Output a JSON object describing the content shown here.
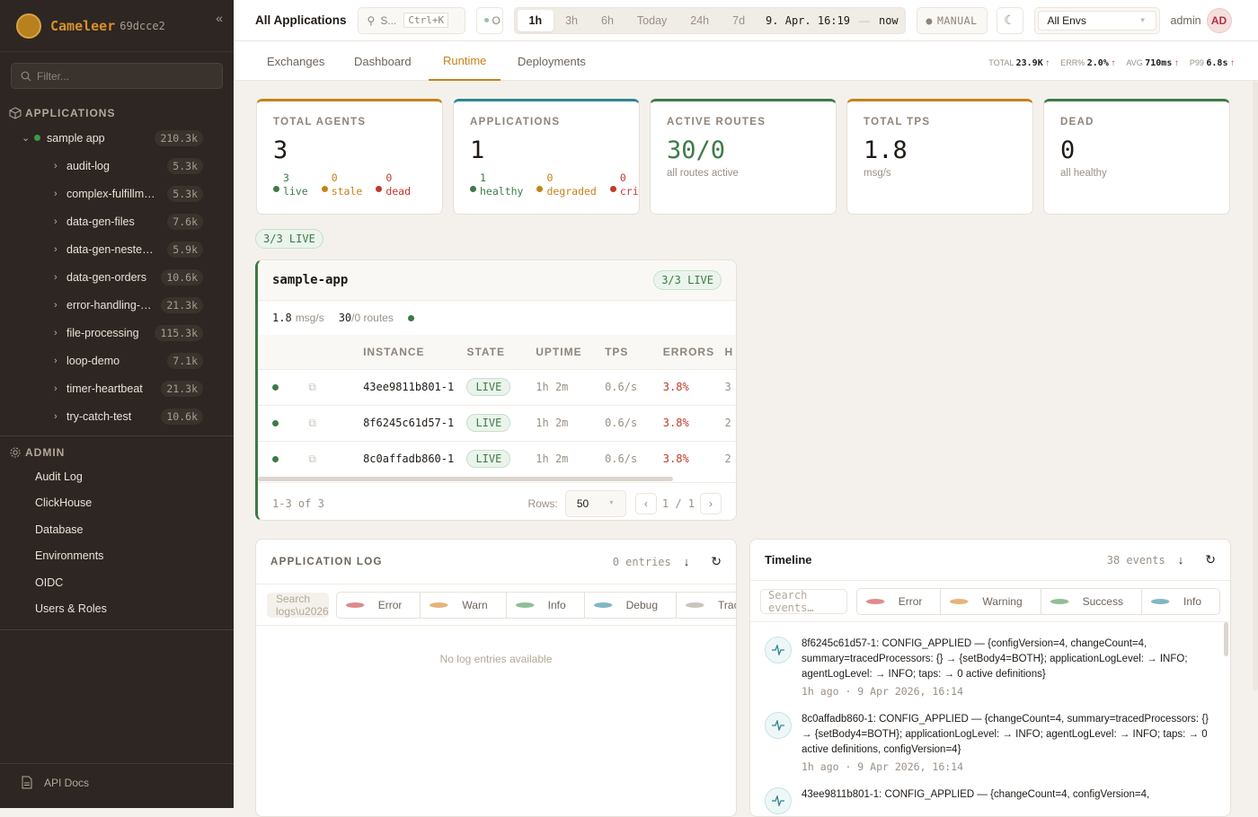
{
  "brand": {
    "name": "Cameleer",
    "version": "69dcce2",
    "collapse": "«"
  },
  "sidebar": {
    "filter_placeholder": "Filter...",
    "applications_label": "APPLICATIONS",
    "root_app": {
      "name": "sample app",
      "count": "210.3k",
      "status_color": "#3d9a4a"
    },
    "routes": [
      {
        "name": "audit-log",
        "count": "5.3k"
      },
      {
        "name": "complex-fulfillm…",
        "count": "5.3k"
      },
      {
        "name": "data-gen-files",
        "count": "7.6k"
      },
      {
        "name": "data-gen-neste…",
        "count": "5.9k"
      },
      {
        "name": "data-gen-orders",
        "count": "10.6k"
      },
      {
        "name": "error-handling-…",
        "count": "21.3k"
      },
      {
        "name": "file-processing",
        "count": "115.3k"
      },
      {
        "name": "loop-demo",
        "count": "7.1k"
      },
      {
        "name": "timer-heartbeat",
        "count": "21.3k"
      },
      {
        "name": "try-catch-test",
        "count": "10.6k"
      }
    ],
    "admin_label": "ADMIN",
    "admin_items": [
      "Audit Log",
      "ClickHouse",
      "Database",
      "Environments",
      "OIDC",
      "Users & Roles"
    ],
    "api_docs": "API Docs"
  },
  "topbar": {
    "title": "All Applications",
    "search_label": "S...",
    "search_shortcut": "Ctrl+K",
    "status_label": "O",
    "time_ranges": [
      "1h",
      "3h",
      "6h",
      "Today",
      "24h",
      "7d"
    ],
    "active_range": "1h",
    "range_from": "9. Apr. 16:19",
    "range_sep": "—",
    "range_to": "now",
    "refresh_mode": "MANUAL",
    "env_select": "All Envs",
    "user": "admin",
    "avatar": "AD"
  },
  "tabs": [
    "Exchanges",
    "Dashboard",
    "Runtime",
    "Deployments"
  ],
  "active_tab": "Runtime",
  "kpis": [
    {
      "label": "TOTAL",
      "value": "23.9K",
      "trend": "↑",
      "color": "#3d7a46"
    },
    {
      "label": "ERR%",
      "value": "2.0%",
      "trend": "↑",
      "color": "#c0392b"
    },
    {
      "label": "AVG",
      "value": "710ms",
      "trend": "↑",
      "color": "#c0392b"
    },
    {
      "label": "P99",
      "value": "6.8s",
      "trend": "↑",
      "color": "#c0392b"
    }
  ],
  "cards": [
    {
      "label": "TOTAL AGENTS",
      "value": "3",
      "accent": "#c6821a",
      "stats": [
        {
          "n": "3",
          "label": "live",
          "color": "#3d7a46"
        },
        {
          "n": "0",
          "label": "stale",
          "color": "#c6821a"
        },
        {
          "n": "0",
          "label": "dead",
          "color": "#c0392b"
        }
      ]
    },
    {
      "label": "APPLICATIONS",
      "value": "1",
      "accent": "#2e8592",
      "stats": [
        {
          "n": "1",
          "label": "healthy",
          "color": "#3d7a46"
        },
        {
          "n": "0",
          "label": "degraded",
          "color": "#c6821a"
        },
        {
          "n": "0",
          "label": "criti",
          "color": "#c0392b"
        }
      ]
    },
    {
      "label": "ACTIVE ROUTES",
      "value": "30/0",
      "sub": "all routes active",
      "accent": "#3d7a46",
      "value_color": "#3d7a46"
    },
    {
      "label": "TOTAL TPS",
      "value": "1.8",
      "sub": "msg/s",
      "accent": "#c6821a"
    },
    {
      "label": "DEAD",
      "value": "0",
      "sub": "all healthy",
      "accent": "#3d7a46"
    }
  ],
  "live_summary": "3/3 LIVE",
  "app_panel": {
    "name": "sample-app",
    "live": "3/3 LIVE",
    "tps": "1.8",
    "tps_unit": "msg/s",
    "routes": "30",
    "routes_rest": "/0 routes",
    "columns": [
      "",
      "",
      "INSTANCE",
      "STATE",
      "UPTIME",
      "TPS",
      "ERRORS",
      "H"
    ],
    "rows": [
      {
        "instance": "43ee9811b801-1",
        "state": "LIVE",
        "uptime": "1h 2m",
        "tps": "0.6/s",
        "errors": "3.8%",
        "h": "3"
      },
      {
        "instance": "8f6245c61d57-1",
        "state": "LIVE",
        "uptime": "1h 2m",
        "tps": "0.6/s",
        "errors": "3.8%",
        "h": "2"
      },
      {
        "instance": "8c0affadb860-1",
        "state": "LIVE",
        "uptime": "1h 2m",
        "tps": "0.6/s",
        "errors": "3.8%",
        "h": "2"
      }
    ],
    "range": "1-3 of 3",
    "rows_label": "Rows:",
    "rows_value": "50",
    "page": "1 / 1"
  },
  "log_panel": {
    "title": "APPLICATION LOG",
    "count": "0 entries",
    "search_placeholder": "Search logs\\u2026",
    "levels": [
      {
        "l": "Error",
        "c": "#e08a8a"
      },
      {
        "l": "Warn",
        "c": "#e6b47a"
      },
      {
        "l": "Info",
        "c": "#8fbf95"
      },
      {
        "l": "Debug",
        "c": "#7fb8c4"
      },
      {
        "l": "Trace",
        "c": "#c9c4bd"
      }
    ],
    "empty": "No log entries available"
  },
  "timeline": {
    "title": "Timeline",
    "count": "38 events",
    "search_placeholder": "Search events…",
    "filters": [
      {
        "l": "Error",
        "c": "#e08a8a"
      },
      {
        "l": "Warning",
        "c": "#e6b47a"
      },
      {
        "l": "Success",
        "c": "#8fbf95"
      },
      {
        "l": "Info",
        "c": "#7fb8c4"
      }
    ],
    "events": [
      {
        "text": "8f6245c61d57-1: CONFIG_APPLIED — {configVersion=4, changeCount=4, summary=tracedProcessors: {} → {setBody4=BOTH}; applicationLogLevel: → INFO; agentLogLevel: → INFO; taps: → 0 active definitions}",
        "time": "1h ago · 9 Apr 2026, 16:14"
      },
      {
        "text": "8c0affadb860-1: CONFIG_APPLIED — {changeCount=4, summary=tracedProcessors: {} → {setBody4=BOTH}; applicationLogLevel: → INFO; agentLogLevel: → INFO; taps: → 0 active definitions, configVersion=4}",
        "time": "1h ago · 9 Apr 2026, 16:14"
      },
      {
        "text": "43ee9811b801-1: CONFIG_APPLIED — {changeCount=4, configVersion=4,",
        "time": ""
      }
    ]
  }
}
